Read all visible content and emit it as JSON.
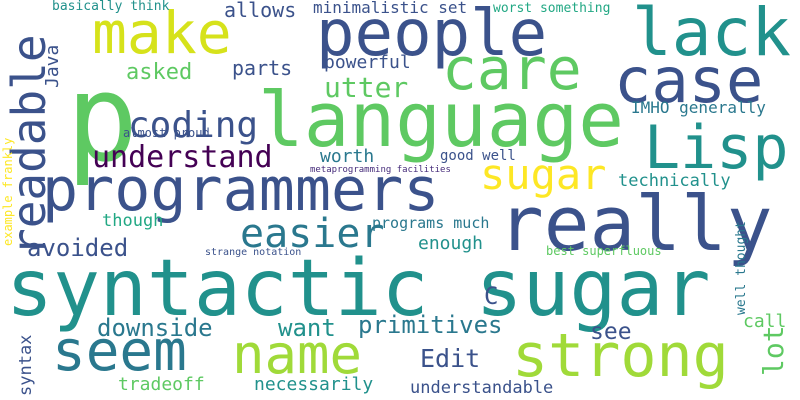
{
  "palette": {
    "background": "#ffffff",
    "dark_purple": "#440154",
    "indigo": "#3b528b",
    "teal": "#21918c",
    "green": "#5ec962",
    "yellow": "#fde725"
  },
  "words": [
    {
      "text": "syntactic sugar",
      "color": "#21918c"
    },
    {
      "text": "programmers",
      "color": "#3b528b"
    },
    {
      "text": "language",
      "color": "#5ec962"
    },
    {
      "text": "really",
      "color": "#3b528b"
    },
    {
      "text": "people",
      "color": "#3b528b"
    },
    {
      "text": "p",
      "color": "#5ec962"
    },
    {
      "text": "make",
      "color": "#d6e21b"
    },
    {
      "text": "care",
      "color": "#5ec962"
    },
    {
      "text": "lack",
      "color": "#21918c"
    },
    {
      "text": "case",
      "color": "#3b528b"
    },
    {
      "text": "Lisp",
      "color": "#21918c"
    },
    {
      "text": "strong",
      "color": "#a0da39"
    },
    {
      "text": "seem",
      "color": "#2a788e"
    },
    {
      "text": "name",
      "color": "#a0da39"
    },
    {
      "text": "readable",
      "color": "#3b528b"
    },
    {
      "text": "easier",
      "color": "#2a788e"
    },
    {
      "text": "sugar",
      "color": "#fde725"
    },
    {
      "text": "understand",
      "color": "#440154"
    },
    {
      "text": "coding",
      "color": "#3b528b"
    },
    {
      "text": "asked",
      "color": "#5ec962"
    },
    {
      "text": "utter",
      "color": "#5ec962"
    },
    {
      "text": "Java",
      "color": "#3b528b"
    },
    {
      "text": "parts",
      "color": "#3b528b"
    },
    {
      "text": "powerful",
      "color": "#3b528b"
    },
    {
      "text": "allows",
      "color": "#3b528b"
    },
    {
      "text": "minimalistic set",
      "color": "#3b528b"
    },
    {
      "text": "basically think",
      "color": "#21918c"
    },
    {
      "text": "worst something",
      "color": "#22a884"
    },
    {
      "text": "IMHO generally",
      "color": "#2a788e"
    },
    {
      "text": "almost proud",
      "color": "#3b528b"
    },
    {
      "text": "worth",
      "color": "#2a788e"
    },
    {
      "text": "good well",
      "color": "#3b528b"
    },
    {
      "text": "metaprogramming facilities",
      "color": "#472d7b"
    },
    {
      "text": "technically",
      "color": "#21918c"
    },
    {
      "text": "though",
      "color": "#22a884"
    },
    {
      "text": "programs much",
      "color": "#2a788e"
    },
    {
      "text": "enough",
      "color": "#21918c"
    },
    {
      "text": "avoided",
      "color": "#3b528b"
    },
    {
      "text": "example frankly",
      "color": "#fde725"
    },
    {
      "text": "strange notation",
      "color": "#3b528b"
    },
    {
      "text": "best superfluous",
      "color": "#5ec962"
    },
    {
      "text": "well thought",
      "color": "#2a788e"
    },
    {
      "text": "lot",
      "color": "#5ec962"
    },
    {
      "text": "C",
      "color": "#3b528b"
    },
    {
      "text": "downside",
      "color": "#2a788e"
    },
    {
      "text": "want",
      "color": "#21918c"
    },
    {
      "text": "primitives",
      "color": "#2a788e"
    },
    {
      "text": "see",
      "color": "#3b528b"
    },
    {
      "text": "call",
      "color": "#5ec962"
    },
    {
      "text": "Edit",
      "color": "#3b528b"
    },
    {
      "text": "syntax",
      "color": "#3b528b"
    },
    {
      "text": "tradeoff",
      "color": "#5ec962"
    },
    {
      "text": "necessarily",
      "color": "#21918c"
    },
    {
      "text": "understandable",
      "color": "#3b528b"
    }
  ]
}
